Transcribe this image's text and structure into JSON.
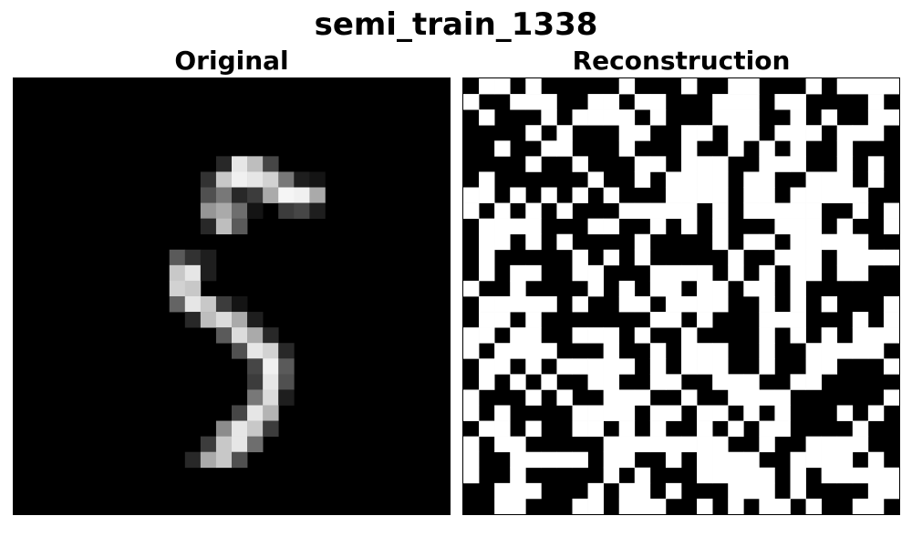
{
  "figure": {
    "title": "semi_train_1338"
  },
  "panels": {
    "original": {
      "title": "Original",
      "image": "grayscale handwritten digit 5 on black background",
      "pixels": [
        "00000000000000000000000000000000000000000000000000000000",
        "00000000000000000000000000000000000000000000000000000000",
        "00000000000000000000000000000000000000000000000000000000",
        "00000000000000000000000000000000000000000000000000000000",
        "00000000000000000000000000000000000000000000000000000000",
        "000000000000000000000000000000000000000000000000000000000000",
        "00000000000000000000000000000000000000000000000000000000",
        "000000000000000000000000000000000000000000000000000000000000"
      ]
    },
    "reconstruction": {
      "title": "Reconstruction",
      "image": "binary noisy reconstruction pattern in black and white"
    }
  }
}
